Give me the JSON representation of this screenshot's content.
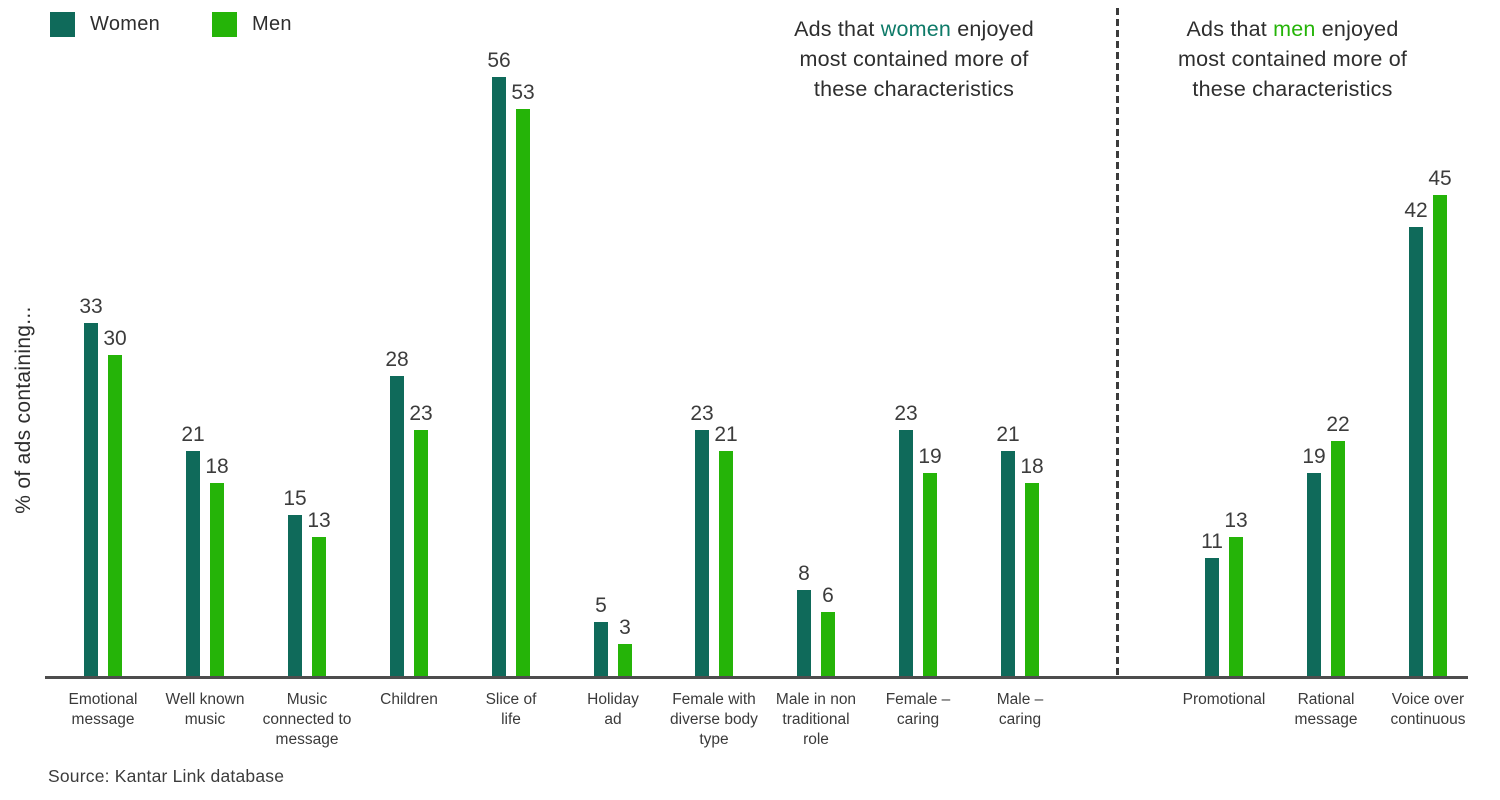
{
  "legend": {
    "items": [
      {
        "label": "Women",
        "color": "#0f6a5a"
      },
      {
        "label": "Men",
        "color": "#25b408"
      }
    ]
  },
  "ylabel": "% of ads containing...",
  "annotations": {
    "women": {
      "highlight_color": "#0e7a68",
      "lines": [
        {
          "pre": "Ads that ",
          "highlight": "women",
          "post": " enjoyed"
        },
        {
          "text": "most contained more of"
        },
        {
          "text": "these characteristics"
        }
      ]
    },
    "men": {
      "highlight_color": "#25b408",
      "lines": [
        {
          "pre": "Ads that ",
          "highlight": "men",
          "post": " enjoyed"
        },
        {
          "text": "most contained more of"
        },
        {
          "text": "these characteristics"
        }
      ]
    }
  },
  "source": "Source: Kantar Link database",
  "chart_data": {
    "type": "bar",
    "title": "",
    "xlabel": "",
    "ylabel": "% of ads containing...",
    "categories": [
      "Emotional message",
      "Well known music",
      "Music connected to message",
      "Children",
      "Slice of life",
      "Holiday ad",
      "Female with diverse body type",
      "Male in non traditional role",
      "Female – caring",
      "Male – caring",
      "Promotional",
      "Rational message",
      "Voice over continuous"
    ],
    "tick_lines": [
      [
        "Emotional",
        "message"
      ],
      [
        "Well known",
        "music"
      ],
      [
        "Music",
        "connected to",
        "message"
      ],
      [
        "Children"
      ],
      [
        "Slice of",
        "life"
      ],
      [
        "Holiday",
        "ad"
      ],
      [
        "Female with",
        "diverse body",
        "type"
      ],
      [
        "Male in non",
        "traditional",
        "role"
      ],
      [
        "Female –",
        "caring"
      ],
      [
        "Male –",
        "caring"
      ],
      [
        "Promotional"
      ],
      [
        "Rational",
        "message"
      ],
      [
        "Voice over",
        "continuous"
      ]
    ],
    "series": [
      {
        "name": "Women",
        "color": "#0f6a5a",
        "values": [
          33,
          21,
          15,
          28,
          56,
          5,
          23,
          8,
          23,
          21,
          11,
          19,
          42
        ]
      },
      {
        "name": "Men",
        "color": "#25b408",
        "values": [
          30,
          18,
          13,
          23,
          53,
          3,
          21,
          6,
          19,
          18,
          13,
          22,
          45
        ]
      }
    ],
    "ylim": [
      0,
      60
    ],
    "grid": false,
    "value_labels": true,
    "legend_position": "top-left",
    "divider_after_category_index": 9
  }
}
